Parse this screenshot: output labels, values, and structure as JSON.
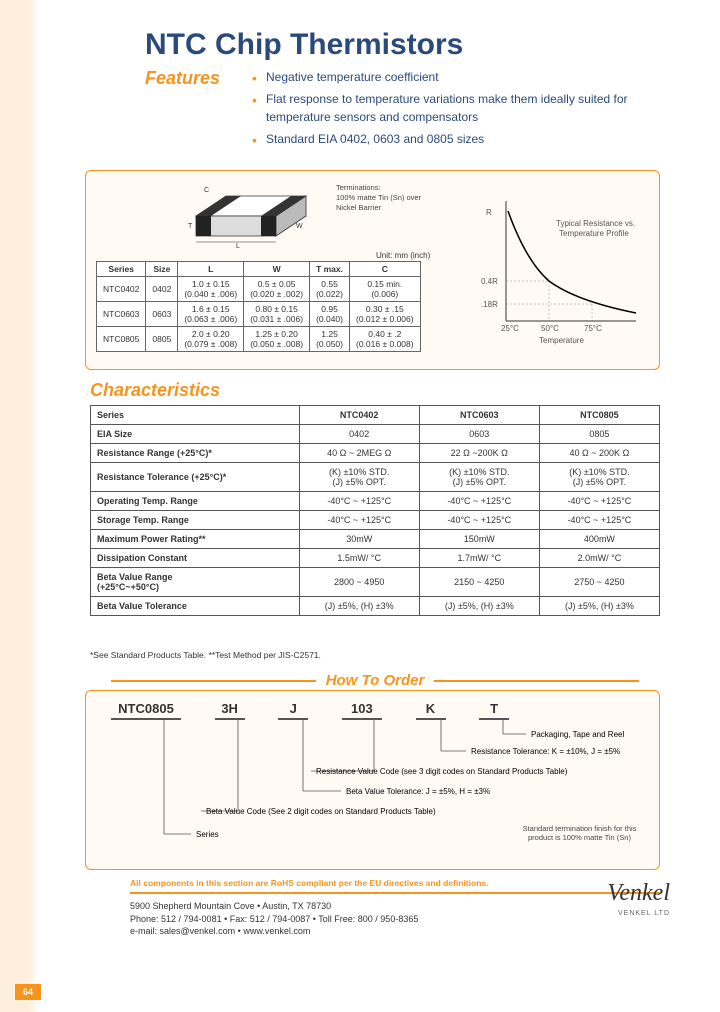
{
  "page": {
    "title": "NTC Chip Thermistors",
    "features_label": "Features",
    "features": [
      "Negative temperature coefficient",
      "Flat response to temperature variations make them ideally suited for temperature sensors and compensators",
      "Standard EIA 0402, 0603 and 0805 sizes"
    ],
    "page_number": "64"
  },
  "chip": {
    "termination_note_1": "Terminations:",
    "termination_note_2": "100% matte Tin (Sn) over",
    "termination_note_3": "Nickel Barrier",
    "unit_label": "Unit: mm (inch)",
    "dims": {
      "headers": [
        "Series",
        "Size",
        "L",
        "W",
        "T max.",
        "C"
      ],
      "rows": [
        [
          "NTC0402",
          "0402",
          "1.0 ± 0.15\n(0.040 ± .006)",
          "0.5 ± 0.05\n(0.020 ± .002)",
          "0.55\n(0.022)",
          "0.15 min.\n(0.006)"
        ],
        [
          "NTC0603",
          "0603",
          "1.6 ± 0.15\n(0.063 ± .006)",
          "0.80 ± 0.15\n(0.031 ± .006)",
          "0.95\n(0.040)",
          "0.30 ± .15\n(0.012 ± 0.006)"
        ],
        [
          "NTC0805",
          "0805",
          "2.0 ± 0.20\n(0.079 ± .008)",
          "1.25 ± 0.20\n(0.050 ± .008)",
          "1.25\n(0.050)",
          "0.40 ± .2\n(0.016 ± 0.008)"
        ]
      ]
    }
  },
  "graph": {
    "title_1": "Typical Resistance vs.",
    "title_2": "Temperature Profile",
    "y_ticks": [
      "R",
      "0.4R",
      ".18R"
    ],
    "x_ticks": [
      "25°C",
      "50°C",
      "75°C"
    ],
    "x_label": "Temperature",
    "curve_color": "#000",
    "grid_color": "#888",
    "background": "#fff"
  },
  "characteristics": {
    "label": "Characteristics",
    "headers": [
      "Series",
      "NTC0402",
      "NTC0603",
      "NTC0805"
    ],
    "rows": [
      [
        "EIA Size",
        "0402",
        "0603",
        "0805"
      ],
      [
        "Resistance Range (+25°C)*",
        "40 Ω ~ 2MEG Ω",
        "22 Ω ~200K Ω",
        "40 Ω ~ 200K Ω"
      ],
      [
        "Resistance Tolerance (+25°C)*",
        "(K) ±10% STD.\n(J) ±5% OPT.",
        "(K) ±10% STD.\n(J) ±5% OPT.",
        "(K) ±10% STD.\n(J) ±5% OPT."
      ],
      [
        "Operating Temp. Range",
        "-40°C ~ +125°C",
        "-40°C ~ +125°C",
        "-40°C ~ +125°C"
      ],
      [
        "Storage Temp. Range",
        "-40°C ~ +125°C",
        "-40°C ~ +125°C",
        "-40°C ~ +125°C"
      ],
      [
        "Maximum Power Rating**",
        "30mW",
        "150mW",
        "400mW"
      ],
      [
        "Dissipation Constant",
        "1.5mW/ °C",
        "1.7mW/ °C",
        "2.0mW/ °C"
      ],
      [
        "Beta Value Range\n(+25°C~+50°C)",
        "2800 ~ 4950",
        "2150 ~ 4250",
        "2750 ~ 4250"
      ],
      [
        "Beta Value Tolerance",
        "(J) ±5%, (H) ±3%",
        "(J) ±5%, (H) ±3%",
        "(J) ±5%, (H) ±3%"
      ]
    ],
    "note": "*See Standard Products Table. **Test Method per JIS-C2571."
  },
  "order": {
    "label": "How To Order",
    "parts": [
      "NTC0805",
      "3H",
      "J",
      "103",
      "K",
      "T"
    ],
    "descs": [
      "Packaging, Tape and Reel",
      "Resistance Tolerance: K = ±10%, J = ±5%",
      "Resistance Value Code (see 3 digit codes on Standard Products Table)",
      "Beta Value Tolerance: J = ±5%, H = ±3%",
      "Beta Value Code (See 2 digit codes on Standard Products Table)",
      "Series"
    ],
    "std_note": "Standard termination finish for this product is 100% matte Tin (Sn)"
  },
  "footer": {
    "rohs": "All components in this section are RoHS compliant per the EU directives and definitions.",
    "addr": "5900 Shepherd Mountain Cove • Austin, TX 78730",
    "phone": "Phone: 512 / 794-0081 • Fax: 512 / 794-0087 • Toll Free: 800 / 950-8365",
    "email": "e-mail: sales@venkel.com • www.venkel.com",
    "logo": "Venkel",
    "logo_sub": "VENKEL LTD"
  },
  "colors": {
    "accent": "#f7941d",
    "title": "#2b4a7c",
    "border": "#666"
  }
}
